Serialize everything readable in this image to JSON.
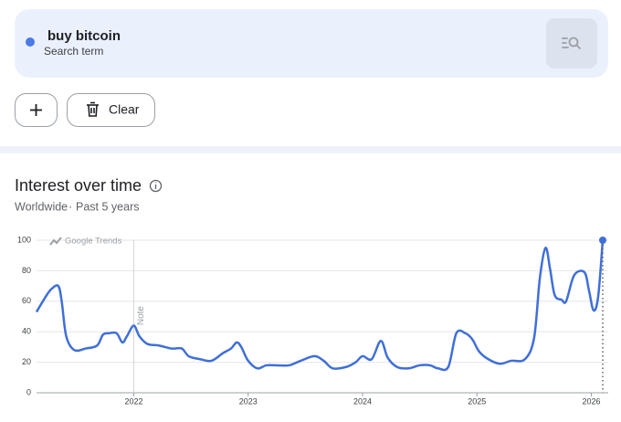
{
  "search": {
    "label": "Search term",
    "action": "Clear"
  },
  "section": {
    "title": "Interest over time",
    "region": "Worldwide",
    "separator": "·",
    "period": "Past 5 years"
  },
  "chart_data": {
    "type": "line",
    "watermark": "Google Trends",
    "annotation": {
      "text": "Note",
      "x": 2022
    },
    "x": [
      2021.15,
      2021.23,
      2021.28,
      2021.34,
      2021.37,
      2021.41,
      2021.48,
      2021.58,
      2021.68,
      2021.73,
      2021.78,
      2021.85,
      2021.9,
      2021.94,
      2022.0,
      2022.05,
      2022.12,
      2022.22,
      2022.33,
      2022.42,
      2022.48,
      2022.58,
      2022.68,
      2022.78,
      2022.85,
      2022.9,
      2022.94,
      2023.0,
      2023.08,
      2023.16,
      2023.26,
      2023.36,
      2023.46,
      2023.58,
      2023.66,
      2023.74,
      2023.86,
      2023.94,
      2024.0,
      2024.08,
      2024.16,
      2024.22,
      2024.3,
      2024.4,
      2024.5,
      2024.59,
      2024.66,
      2024.75,
      2024.82,
      2024.9,
      2024.96,
      2025.02,
      2025.1,
      2025.2,
      2025.3,
      2025.42,
      2025.5,
      2025.55,
      2025.6,
      2025.64,
      2025.68,
      2025.74,
      2025.78,
      2025.85,
      2025.94,
      2025.98,
      2026.02,
      2026.06,
      2026.1
    ],
    "series": [
      {
        "name": "buy bitcoin",
        "color": "#3f6fd8",
        "values": [
          53,
          63,
          68,
          70,
          60,
          37,
          28,
          29,
          31,
          38,
          39,
          39,
          33,
          37,
          44,
          37,
          32,
          31,
          29,
          29,
          24,
          22,
          21,
          26,
          29,
          33,
          30,
          21,
          16,
          18,
          18,
          18,
          21,
          24,
          21,
          16,
          17,
          20,
          24,
          22,
          34,
          23,
          17,
          16,
          18,
          18,
          16,
          17,
          39,
          39,
          35,
          27,
          22,
          19,
          21,
          22,
          36,
          75,
          95,
          81,
          64,
          61,
          60,
          77,
          79,
          67,
          54,
          63,
          100
        ]
      }
    ],
    "xlim": [
      2021.15,
      2026.1
    ],
    "xticks": [
      2022,
      2023,
      2024,
      2025,
      2026
    ],
    "ylim": [
      0,
      100
    ],
    "yticks": [
      0,
      20,
      40,
      60,
      80,
      100
    ],
    "grid": true
  }
}
